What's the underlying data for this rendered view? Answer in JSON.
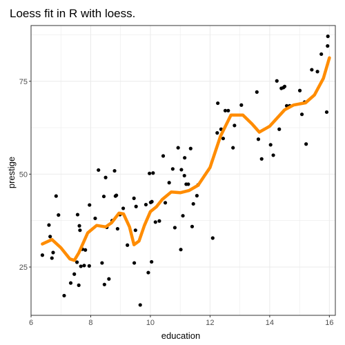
{
  "chart_data": {
    "type": "scatter",
    "title": "Loess fit in R with loess.",
    "xlabel": "education",
    "ylabel": "prestige",
    "xlim": [
      6.0,
      16.2
    ],
    "ylim": [
      12,
      90
    ],
    "x_ticks": [
      6,
      8,
      10,
      12,
      14,
      16
    ],
    "y_ticks": [
      25,
      50,
      75
    ],
    "x_minor_ticks": [
      7,
      9,
      11,
      13,
      15
    ],
    "y_minor_ticks": [
      37.5,
      62.5,
      87.5
    ],
    "grid": true,
    "legend": "none",
    "colors": {
      "points": "#000000",
      "fit_line": "#ff8c00",
      "panel_border": "#333333",
      "grid": "#ebebeb"
    },
    "series": [
      {
        "kind": "points",
        "x": [
          6.38,
          6.6,
          6.64,
          6.7,
          6.74,
          6.84,
          6.92,
          7.11,
          7.33,
          7.45,
          7.54,
          7.56,
          7.6,
          7.62,
          7.64,
          7.67,
          7.72,
          7.78,
          7.82,
          7.95,
          7.96,
          8.15,
          8.26,
          8.38,
          8.44,
          8.46,
          8.5,
          8.54,
          8.61,
          8.72,
          8.8,
          8.83,
          8.86,
          8.9,
          8.98,
          9.09,
          9.23,
          9.45,
          9.46,
          9.5,
          9.52,
          9.66,
          9.85,
          9.93,
          9.97,
          10.01,
          10.04,
          10.05,
          10.09,
          10.17,
          10.3,
          10.43,
          10.5,
          10.63,
          10.75,
          10.82,
          10.93,
          11.02,
          11.04,
          11.09,
          11.14,
          11.15,
          11.2,
          11.27,
          11.35,
          11.4,
          11.44,
          11.56,
          11.6,
          12.09,
          12.24,
          12.26,
          12.37,
          12.44,
          12.51,
          12.61,
          12.77,
          12.82,
          13.05,
          13.57,
          13.62,
          13.73,
          14.03,
          14.12,
          14.24,
          14.32,
          14.39,
          14.46,
          14.5,
          14.57,
          14.67,
          15.01,
          15.08,
          15.17,
          15.22,
          15.41,
          15.6,
          15.73,
          15.91,
          15.94,
          15.95
        ],
        "y": [
          28.2,
          36.3,
          33.2,
          27.4,
          28.9,
          44.1,
          39.0,
          17.3,
          20.7,
          23.1,
          26.3,
          39.1,
          20.1,
          36.1,
          34.9,
          25.2,
          29.8,
          25.4,
          29.6,
          25.3,
          41.7,
          38.1,
          51.1,
          26.1,
          44.0,
          20.3,
          49.1,
          35.7,
          21.8,
          37.5,
          50.9,
          44.1,
          44.3,
          35.3,
          39.1,
          40.8,
          30.9,
          43.5,
          26.1,
          34.9,
          41.3,
          14.8,
          41.8,
          23.5,
          50.2,
          42.4,
          26.4,
          42.6,
          50.3,
          37.1,
          37.4,
          54.9,
          42.3,
          47.7,
          51.4,
          35.6,
          57.1,
          29.7,
          51.2,
          38.8,
          49.6,
          54.4,
          47.3,
          47.3,
          56.9,
          35.9,
          42.0,
          44.2,
          47.1,
          32.8,
          61.1,
          69.1,
          62.1,
          59.6,
          67.1,
          67.1,
          57.1,
          63.1,
          68.6,
          72.1,
          59.4,
          54.1,
          57.9,
          55.1,
          75.1,
          62.1,
          73.1,
          73.3,
          73.6,
          68.4,
          68.4,
          72.5,
          66.1,
          69.4,
          58.1,
          78.1,
          77.6,
          82.3,
          66.7,
          84.5,
          87.1
        ]
      },
      {
        "kind": "loess",
        "x": [
          6.38,
          6.7,
          7.0,
          7.3,
          7.45,
          7.6,
          7.9,
          8.2,
          8.5,
          8.7,
          8.95,
          9.1,
          9.3,
          9.45,
          9.62,
          9.8,
          10.0,
          10.2,
          10.4,
          10.7,
          11.0,
          11.3,
          11.6,
          12.0,
          12.35,
          12.7,
          13.1,
          13.4,
          13.65,
          14.0,
          14.5,
          14.8,
          15.2,
          15.5,
          15.8,
          16.0
        ],
        "y": [
          31.2,
          32.4,
          30.2,
          27.2,
          26.8,
          28.8,
          34.2,
          36.2,
          35.8,
          36.9,
          39.5,
          39.3,
          35.8,
          31.0,
          32.0,
          36.2,
          39.9,
          41.2,
          43.2,
          45.2,
          45.0,
          45.6,
          47.0,
          51.8,
          60.2,
          65.9,
          65.9,
          63.6,
          61.3,
          62.9,
          67.3,
          68.6,
          69.2,
          71.3,
          75.8,
          81.3
        ]
      }
    ]
  }
}
